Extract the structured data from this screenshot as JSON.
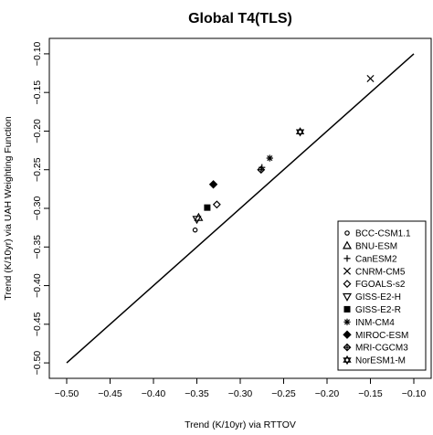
{
  "chart_data": {
    "type": "scatter",
    "title": "Global T4(TLS)",
    "xlabel": "Trend (K/10yr) via RTTOV",
    "ylabel": "Trend (K/10yr) via UAH Weighting Function",
    "xlim": [
      -0.52,
      -0.08
    ],
    "ylim": [
      -0.52,
      -0.08
    ],
    "xticks": [
      -0.5,
      -0.45,
      -0.4,
      -0.35,
      -0.3,
      -0.25,
      -0.2,
      -0.15,
      -0.1
    ],
    "yticks": [
      -0.5,
      -0.45,
      -0.4,
      -0.35,
      -0.3,
      -0.25,
      -0.2,
      -0.15,
      -0.1
    ],
    "xtick_labels": [
      "−0.50",
      "−0.45",
      "−0.40",
      "−0.35",
      "−0.30",
      "−0.25",
      "−0.20",
      "−0.15",
      "−0.10"
    ],
    "ytick_labels": [
      "−0.50",
      "−0.45",
      "−0.40",
      "−0.35",
      "−0.30",
      "−0.25",
      "−0.20",
      "−0.15",
      "−0.10"
    ],
    "reference_line": {
      "x": [
        -0.5,
        -0.1
      ],
      "y": [
        -0.5,
        -0.1
      ]
    },
    "legend_position": "bottom-right",
    "grid": false,
    "series": [
      {
        "name": "BCC-CSM1.1",
        "symbol": "circle",
        "x": -0.352,
        "y": -0.328
      },
      {
        "name": "BNU-ESM",
        "symbol": "triangle-up",
        "x": -0.348,
        "y": -0.312
      },
      {
        "name": "CanESM2",
        "symbol": "plus",
        "x": -0.275,
        "y": -0.247
      },
      {
        "name": "CNRM-CM5",
        "symbol": "cross",
        "x": -0.15,
        "y": -0.132
      },
      {
        "name": "FGOALS-s2",
        "symbol": "diamond-open",
        "x": -0.327,
        "y": -0.295
      },
      {
        "name": "GISS-E2-H",
        "symbol": "triangle-down",
        "x": -0.35,
        "y": -0.314
      },
      {
        "name": "GISS-E2-R",
        "symbol": "square-filled",
        "x": -0.338,
        "y": -0.299
      },
      {
        "name": "INM-CM4",
        "symbol": "asterisk",
        "x": -0.266,
        "y": -0.235
      },
      {
        "name": "MIROC-ESM",
        "symbol": "diamond-filled",
        "x": -0.331,
        "y": -0.269
      },
      {
        "name": "MRI-CGCM3",
        "symbol": "diamond-plus",
        "x": -0.276,
        "y": -0.25
      },
      {
        "name": "NorESM1-M",
        "symbol": "star-of-david",
        "x": -0.231,
        "y": -0.201
      }
    ]
  }
}
